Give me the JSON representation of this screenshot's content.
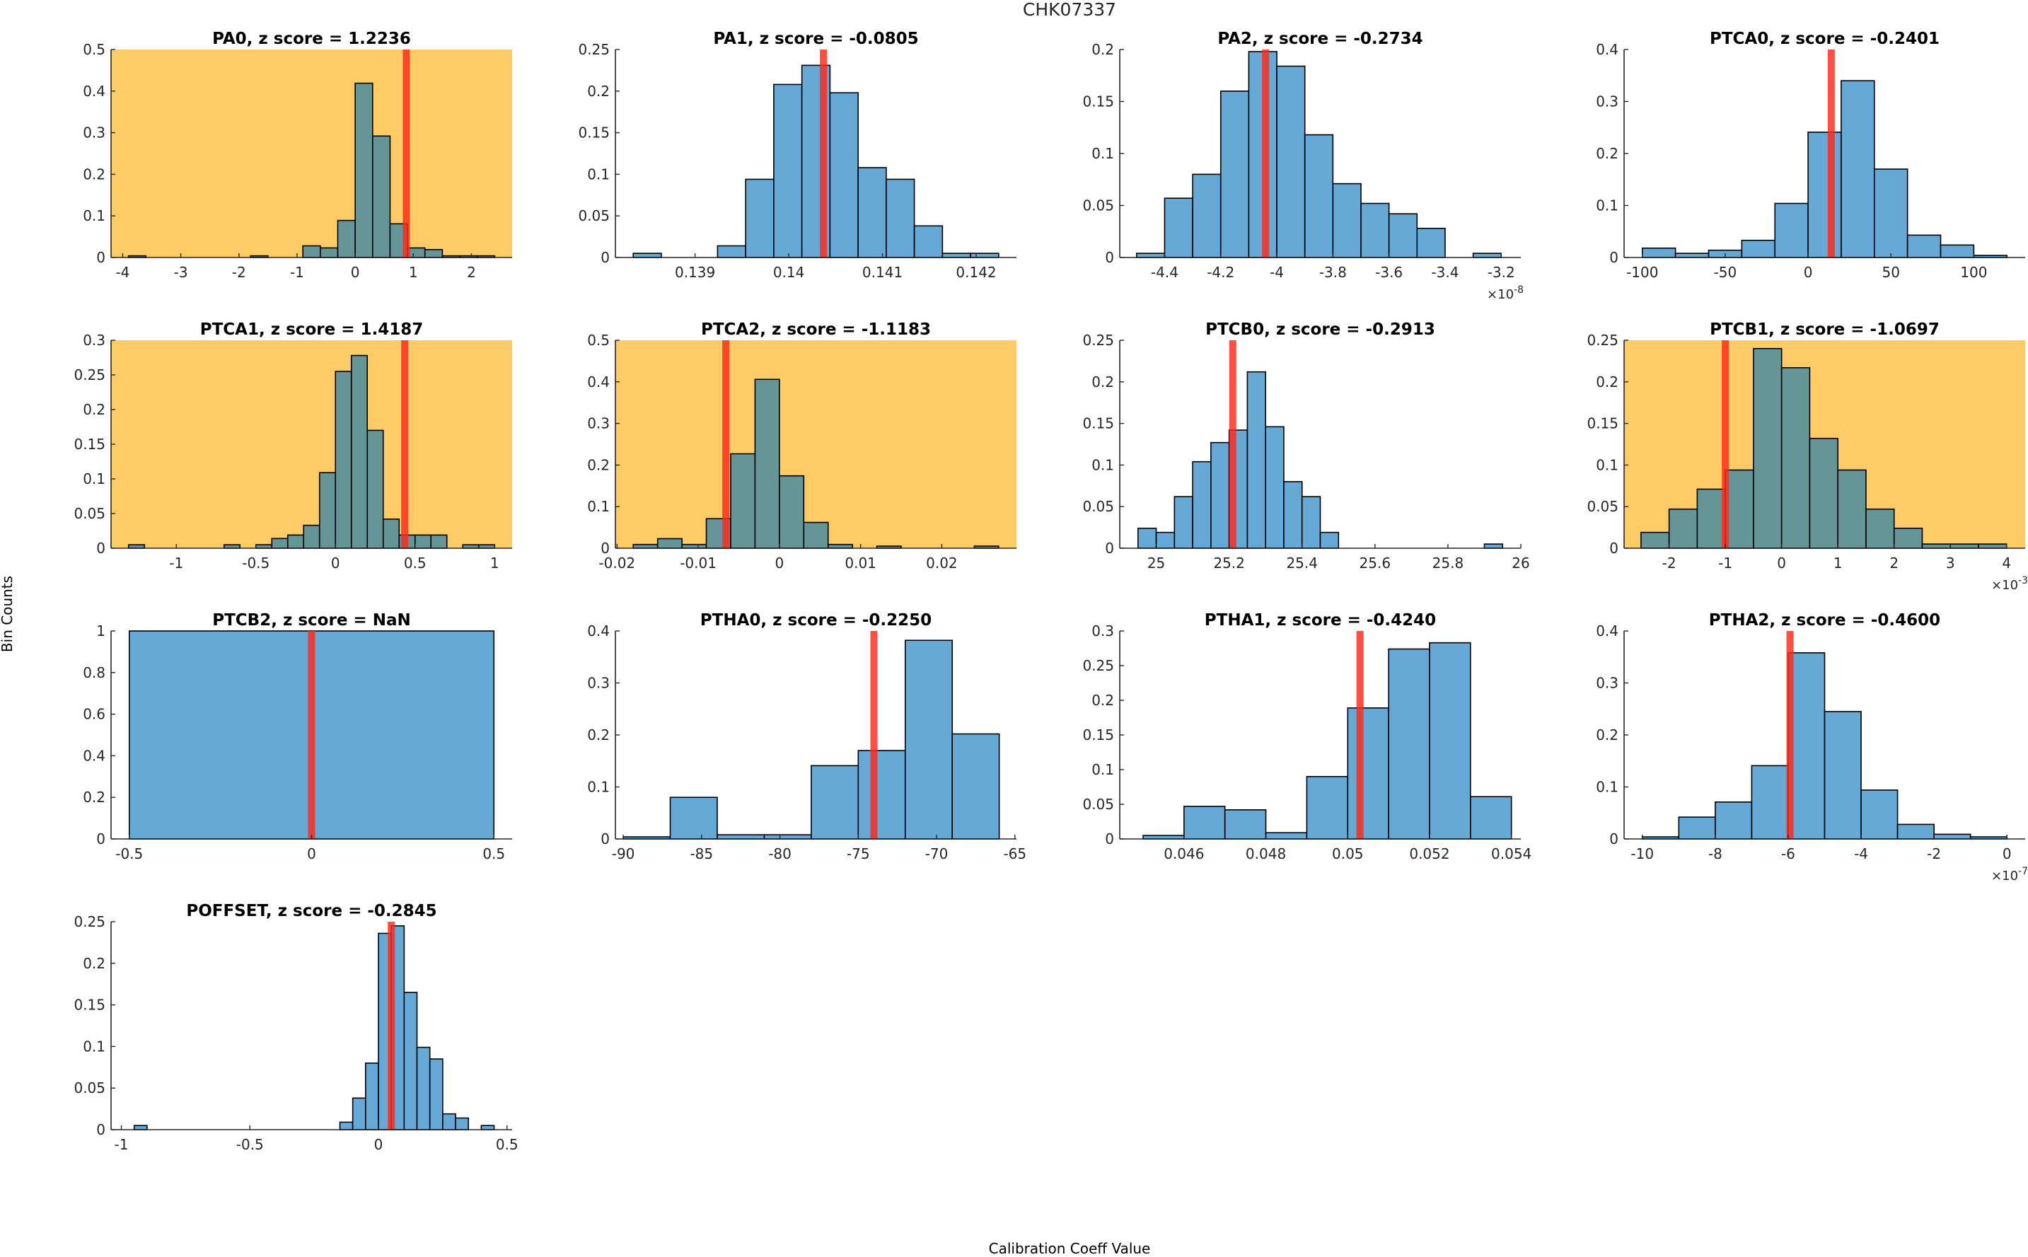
{
  "figure": {
    "title": "CHK07337",
    "xlabel": "Calibration Coeff Value",
    "ylabel": "Bin Counts"
  },
  "colors": {
    "bar_normal": "#66a8d6",
    "bar_flagged": "#669598",
    "flag_background": "#fecb66",
    "reference_line": "#ff2a1a",
    "bar_edge": "#000000",
    "axis": "#262626"
  },
  "chart_data": [
    {
      "type": "bar",
      "name": "PA0",
      "title": "PA0, z score = 1.2236",
      "z_score": 1.2236,
      "flagged": true,
      "xlim": [
        -4.2,
        2.7
      ],
      "ylim": [
        0,
        0.5
      ],
      "xticks": [
        -4,
        -3,
        -2,
        -1,
        0,
        1,
        2
      ],
      "xtick_labels": [
        "-4",
        "-3",
        "-2",
        "-1",
        "0",
        "1",
        "2"
      ],
      "yticks": [
        0,
        0.1,
        0.2,
        0.3,
        0.4,
        0.5
      ],
      "ytick_labels": [
        "0",
        "0.1",
        "0.2",
        "0.3",
        "0.4",
        "0.5"
      ],
      "x_exponent": null,
      "bin_edges": [
        -3.9,
        -3.6,
        -3.3,
        -3.0,
        -2.7,
        -2.4,
        -2.1,
        -1.8,
        -1.5,
        -1.2,
        -0.9,
        -0.6,
        -0.3,
        0.0,
        0.3,
        0.6,
        0.9,
        1.2,
        1.5,
        1.8,
        2.1,
        2.4
      ],
      "values": [
        0.004,
        0,
        0,
        0,
        0,
        0,
        0,
        0.004,
        0,
        0,
        0.028,
        0.023,
        0.089,
        0.419,
        0.292,
        0.081,
        0.023,
        0.019,
        0.004,
        0.004,
        0.004
      ],
      "reference_value": 0.88
    },
    {
      "type": "bar",
      "name": "PA1",
      "title": "PA1, z score = -0.0805",
      "z_score": -0.0805,
      "flagged": false,
      "xlim": [
        0.13815,
        0.14243
      ],
      "ylim": [
        0,
        0.25
      ],
      "xticks": [
        0.139,
        0.14,
        0.141,
        0.142
      ],
      "xtick_labels": [
        "0.139",
        "0.14",
        "0.141",
        "0.142"
      ],
      "yticks": [
        0,
        0.05,
        0.1,
        0.15,
        0.2,
        0.25
      ],
      "ytick_labels": [
        "0",
        "0.05",
        "0.1",
        "0.15",
        "0.2",
        "0.25"
      ],
      "x_exponent": null,
      "bin_edges": [
        0.13834,
        0.13864,
        0.13894,
        0.13924,
        0.13954,
        0.13984,
        0.14014,
        0.14044,
        0.14074,
        0.14104,
        0.14134,
        0.14164,
        0.14194,
        0.14224
      ],
      "values": [
        0.005,
        0,
        0,
        0.014,
        0.094,
        0.208,
        0.231,
        0.198,
        0.108,
        0.094,
        0.038,
        0.005,
        0.005
      ],
      "reference_value": 0.14037
    },
    {
      "type": "bar",
      "name": "PA2",
      "title": "PA2, z score = -0.2734",
      "z_score": -0.2734,
      "flagged": false,
      "xlim": [
        -4.56,
        -3.13
      ],
      "ylim": [
        0,
        0.2
      ],
      "xticks": [
        -4.4,
        -4.2,
        -4.0,
        -3.8,
        -3.6,
        -3.4,
        -3.2
      ],
      "xtick_labels": [
        "-4.4",
        "-4.2",
        "-4",
        "-3.8",
        "-3.6",
        "-3.4",
        "-3.2"
      ],
      "yticks": [
        0,
        0.05,
        0.1,
        0.15,
        0.2
      ],
      "ytick_labels": [
        "0",
        "0.05",
        "0.1",
        "0.15",
        "0.2"
      ],
      "x_exponent": "-8",
      "bin_edges": [
        -4.5,
        -4.4,
        -4.3,
        -4.2,
        -4.1,
        -4.0,
        -3.9,
        -3.8,
        -3.7,
        -3.6,
        -3.5,
        -3.4,
        -3.3,
        -3.2
      ],
      "values": [
        0.004,
        0.057,
        0.08,
        0.16,
        0.198,
        0.184,
        0.118,
        0.071,
        0.052,
        0.042,
        0.028,
        0,
        0.004
      ],
      "reference_value": -4.04
    },
    {
      "type": "bar",
      "name": "PTCA0",
      "title": "PTCA0, z score = -0.2401",
      "z_score": -0.2401,
      "flagged": false,
      "xlim": [
        -111,
        131
      ],
      "ylim": [
        0,
        0.4
      ],
      "xticks": [
        -100,
        -50,
        0,
        50,
        100
      ],
      "xtick_labels": [
        "-100",
        "-50",
        "0",
        "50",
        "100"
      ],
      "yticks": [
        0,
        0.1,
        0.2,
        0.3,
        0.4
      ],
      "ytick_labels": [
        "0",
        "0.1",
        "0.2",
        "0.3",
        "0.4"
      ],
      "x_exponent": null,
      "bin_edges": [
        -100,
        -80,
        -60,
        -40,
        -20,
        0,
        20,
        40,
        60,
        80,
        100,
        120
      ],
      "values": [
        0.018,
        0.008,
        0.014,
        0.033,
        0.104,
        0.241,
        0.34,
        0.17,
        0.043,
        0.024,
        0.004
      ],
      "reference_value": 14
    },
    {
      "type": "bar",
      "name": "PTCA1",
      "title": "PTCA1, z score = 1.4187",
      "z_score": 1.4187,
      "flagged": true,
      "xlim": [
        -1.41,
        1.11
      ],
      "ylim": [
        0,
        0.3
      ],
      "xticks": [
        -1,
        -0.5,
        0,
        0.5,
        1
      ],
      "xtick_labels": [
        "-1",
        "-0.5",
        "0",
        "0.5",
        "1"
      ],
      "yticks": [
        0,
        0.05,
        0.1,
        0.15,
        0.2,
        0.25,
        0.3
      ],
      "ytick_labels": [
        "0",
        "0.05",
        "0.1",
        "0.15",
        "0.2",
        "0.25",
        "0.3"
      ],
      "x_exponent": null,
      "bin_edges": [
        -1.3,
        -1.2,
        -1.1,
        -1.0,
        -0.9,
        -0.8,
        -0.7,
        -0.6,
        -0.5,
        -0.4,
        -0.3,
        -0.2,
        -0.1,
        0.0,
        0.1,
        0.2,
        0.3,
        0.4,
        0.5,
        0.6,
        0.7,
        0.8,
        0.9,
        1.0
      ],
      "values": [
        0.005,
        0,
        0,
        0,
        0,
        0,
        0.005,
        0,
        0.005,
        0.014,
        0.019,
        0.033,
        0.109,
        0.255,
        0.278,
        0.17,
        0.042,
        0.019,
        0.019,
        0.019,
        0,
        0.005,
        0.005
      ],
      "reference_value": 0.435
    },
    {
      "type": "bar",
      "name": "PTCA2",
      "title": "PTCA2, z score = -1.1183",
      "z_score": -1.1183,
      "flagged": true,
      "xlim": [
        -0.0202,
        0.0292
      ],
      "ylim": [
        0,
        0.5
      ],
      "xticks": [
        -0.02,
        -0.01,
        0,
        0.01,
        0.02
      ],
      "xtick_labels": [
        "-0.02",
        "-0.01",
        "0",
        "0.01",
        "0.02"
      ],
      "yticks": [
        0,
        0.1,
        0.2,
        0.3,
        0.4,
        0.5
      ],
      "ytick_labels": [
        "0",
        "0.1",
        "0.2",
        "0.3",
        "0.4",
        "0.5"
      ],
      "x_exponent": null,
      "bin_edges": [
        -0.018,
        -0.015,
        -0.012,
        -0.009,
        -0.006,
        -0.003,
        0.0,
        0.003,
        0.006,
        0.009,
        0.012,
        0.015,
        0.018,
        0.021,
        0.024,
        0.027
      ],
      "values": [
        0.009,
        0.023,
        0.009,
        0.071,
        0.227,
        0.406,
        0.174,
        0.062,
        0.009,
        0,
        0.005,
        0,
        0,
        0,
        0.005
      ],
      "reference_value": -0.0066
    },
    {
      "type": "bar",
      "name": "PTCB0",
      "title": "PTCB0, z score = -0.2913",
      "z_score": -0.2913,
      "flagged": false,
      "xlim": [
        24.9,
        26.0
      ],
      "ylim": [
        0,
        0.25
      ],
      "xticks": [
        25,
        25.2,
        25.4,
        25.6,
        25.8,
        26
      ],
      "xtick_labels": [
        "25",
        "25.2",
        "25.4",
        "25.6",
        "25.8",
        "26"
      ],
      "yticks": [
        0,
        0.05,
        0.1,
        0.15,
        0.2,
        0.25
      ],
      "ytick_labels": [
        "0",
        "0.05",
        "0.1",
        "0.15",
        "0.2",
        "0.25"
      ],
      "x_exponent": null,
      "bin_edges": [
        24.95,
        25.0,
        25.05,
        25.1,
        25.15,
        25.2,
        25.25,
        25.3,
        25.35,
        25.4,
        25.45,
        25.5,
        25.55,
        25.6,
        25.65,
        25.7,
        25.75,
        25.8,
        25.85,
        25.9,
        25.95
      ],
      "values": [
        0.024,
        0.019,
        0.062,
        0.104,
        0.127,
        0.142,
        0.212,
        0.146,
        0.08,
        0.062,
        0.019,
        0,
        0,
        0,
        0,
        0,
        0,
        0,
        0,
        0.005
      ],
      "reference_value": 25.21
    },
    {
      "type": "bar",
      "name": "PTCB1",
      "title": "PTCB1, z score = -1.0697",
      "z_score": -1.0697,
      "flagged": true,
      "xlim": [
        -2.8,
        4.33
      ],
      "ylim": [
        0,
        0.25
      ],
      "xticks": [
        -2,
        -1,
        0,
        1,
        2,
        3,
        4
      ],
      "xtick_labels": [
        "-2",
        "-1",
        "0",
        "1",
        "2",
        "3",
        "4"
      ],
      "yticks": [
        0,
        0.05,
        0.1,
        0.15,
        0.2,
        0.25
      ],
      "ytick_labels": [
        "0",
        "0.05",
        "0.1",
        "0.15",
        "0.2",
        "0.25"
      ],
      "x_exponent": "-3",
      "bin_edges": [
        -2.5,
        -2.0,
        -1.5,
        -1.0,
        -0.5,
        0.0,
        0.5,
        1.0,
        1.5,
        2.0,
        2.5,
        3.0,
        3.5,
        4.0
      ],
      "values": [
        0.019,
        0.047,
        0.071,
        0.094,
        0.24,
        0.217,
        0.132,
        0.094,
        0.047,
        0.024,
        0.005,
        0.005,
        0.005
      ],
      "reference_value": -1.0
    },
    {
      "type": "bar",
      "name": "PTCB2",
      "title": "PTCB2, z score = NaN",
      "z_score": "NaN",
      "flagged": false,
      "xlim": [
        -0.55,
        0.55
      ],
      "ylim": [
        0,
        1
      ],
      "xticks": [
        -0.5,
        0,
        0.5
      ],
      "xtick_labels": [
        "-0.5",
        "0",
        "0.5"
      ],
      "yticks": [
        0,
        0.2,
        0.4,
        0.6,
        0.8,
        1
      ],
      "ytick_labels": [
        "0",
        "0.2",
        "0.4",
        "0.6",
        "0.8",
        "1"
      ],
      "x_exponent": null,
      "bin_edges": [
        -0.5,
        0.5
      ],
      "values": [
        1.0
      ],
      "reference_value": 0
    },
    {
      "type": "bar",
      "name": "PTHA0",
      "title": "PTHA0, z score = -0.2250",
      "z_score": -0.225,
      "flagged": false,
      "xlim": [
        -90.5,
        -64.9
      ],
      "ylim": [
        0,
        0.4
      ],
      "xticks": [
        -90,
        -85,
        -80,
        -75,
        -70,
        -65
      ],
      "xtick_labels": [
        "-90",
        "-85",
        "-80",
        "-75",
        "-70",
        "-65"
      ],
      "yticks": [
        0,
        0.1,
        0.2,
        0.3,
        0.4
      ],
      "ytick_labels": [
        "0",
        "0.1",
        "0.2",
        "0.3",
        "0.4"
      ],
      "x_exponent": null,
      "bin_edges": [
        -90,
        -87,
        -84,
        -81,
        -78,
        -75,
        -72,
        -69,
        -66
      ],
      "values": [
        0.004,
        0.08,
        0.008,
        0.008,
        0.141,
        0.17,
        0.382,
        0.202
      ],
      "reference_value": -74
    },
    {
      "type": "bar",
      "name": "PTHA1",
      "title": "PTHA1, z score = -0.4240",
      "z_score": -0.424,
      "flagged": false,
      "xlim": [
        0.04443,
        0.05423
      ],
      "ylim": [
        0,
        0.3
      ],
      "xticks": [
        0.046,
        0.048,
        0.05,
        0.052,
        0.054
      ],
      "xtick_labels": [
        "0.046",
        "0.048",
        "0.05",
        "0.052",
        "0.054"
      ],
      "yticks": [
        0,
        0.05,
        0.1,
        0.15,
        0.2,
        0.25,
        0.3
      ],
      "ytick_labels": [
        "0",
        "0.05",
        "0.1",
        "0.15",
        "0.2",
        "0.25",
        "0.3"
      ],
      "x_exponent": null,
      "bin_edges": [
        0.045,
        0.046,
        0.047,
        0.048,
        0.049,
        0.05,
        0.051,
        0.052,
        0.053,
        0.054
      ],
      "values": [
        0.005,
        0.047,
        0.042,
        0.009,
        0.09,
        0.189,
        0.274,
        0.283,
        0.061
      ],
      "reference_value": 0.0503
    },
    {
      "type": "bar",
      "name": "PTHA2",
      "title": "PTHA2, z score = -0.4600",
      "z_score": -0.46,
      "flagged": false,
      "xlim": [
        -10.5,
        0.5
      ],
      "ylim": [
        0,
        0.4
      ],
      "xticks": [
        -10,
        -8,
        -6,
        -4,
        -2,
        0
      ],
      "xtick_labels": [
        "-10",
        "-8",
        "-6",
        "-4",
        "-2",
        "0"
      ],
      "yticks": [
        0,
        0.1,
        0.2,
        0.3,
        0.4
      ],
      "ytick_labels": [
        "0",
        "0.1",
        "0.2",
        "0.3",
        "0.4"
      ],
      "x_exponent": "-7",
      "bin_edges": [
        -10,
        -9,
        -8,
        -7,
        -6,
        -5,
        -4,
        -3,
        -2,
        -1,
        0
      ],
      "values": [
        0.004,
        0.042,
        0.071,
        0.141,
        0.358,
        0.245,
        0.094,
        0.028,
        0.009,
        0.004
      ],
      "reference_value": -5.95
    },
    {
      "type": "bar",
      "name": "POFFSET",
      "title": "POFFSET, z score = -0.2845",
      "z_score": -0.2845,
      "flagged": false,
      "xlim": [
        -1.04,
        0.52
      ],
      "ylim": [
        0,
        0.25
      ],
      "xticks": [
        -1,
        -0.5,
        0,
        0.5
      ],
      "xtick_labels": [
        "-1",
        "-0.5",
        "0",
        "0.5"
      ],
      "yticks": [
        0,
        0.05,
        0.1,
        0.15,
        0.2,
        0.25
      ],
      "ytick_labels": [
        "0",
        "0.05",
        "0.1",
        "0.15",
        "0.2",
        "0.25"
      ],
      "x_exponent": null,
      "bin_edges": [
        -0.95,
        -0.9,
        -0.85,
        -0.8,
        -0.75,
        -0.7,
        -0.65,
        -0.6,
        -0.55,
        -0.5,
        -0.45,
        -0.4,
        -0.35,
        -0.3,
        -0.25,
        -0.2,
        -0.15,
        -0.1,
        -0.05,
        0.0,
        0.05,
        0.1,
        0.15,
        0.2,
        0.25,
        0.3,
        0.35,
        0.4,
        0.45
      ],
      "values": [
        0.005,
        0,
        0,
        0,
        0,
        0,
        0,
        0,
        0,
        0,
        0,
        0,
        0,
        0,
        0,
        0,
        0.009,
        0.038,
        0.08,
        0.236,
        0.245,
        0.165,
        0.099,
        0.085,
        0.019,
        0.014,
        0,
        0.005
      ],
      "reference_value": 0.05
    }
  ]
}
